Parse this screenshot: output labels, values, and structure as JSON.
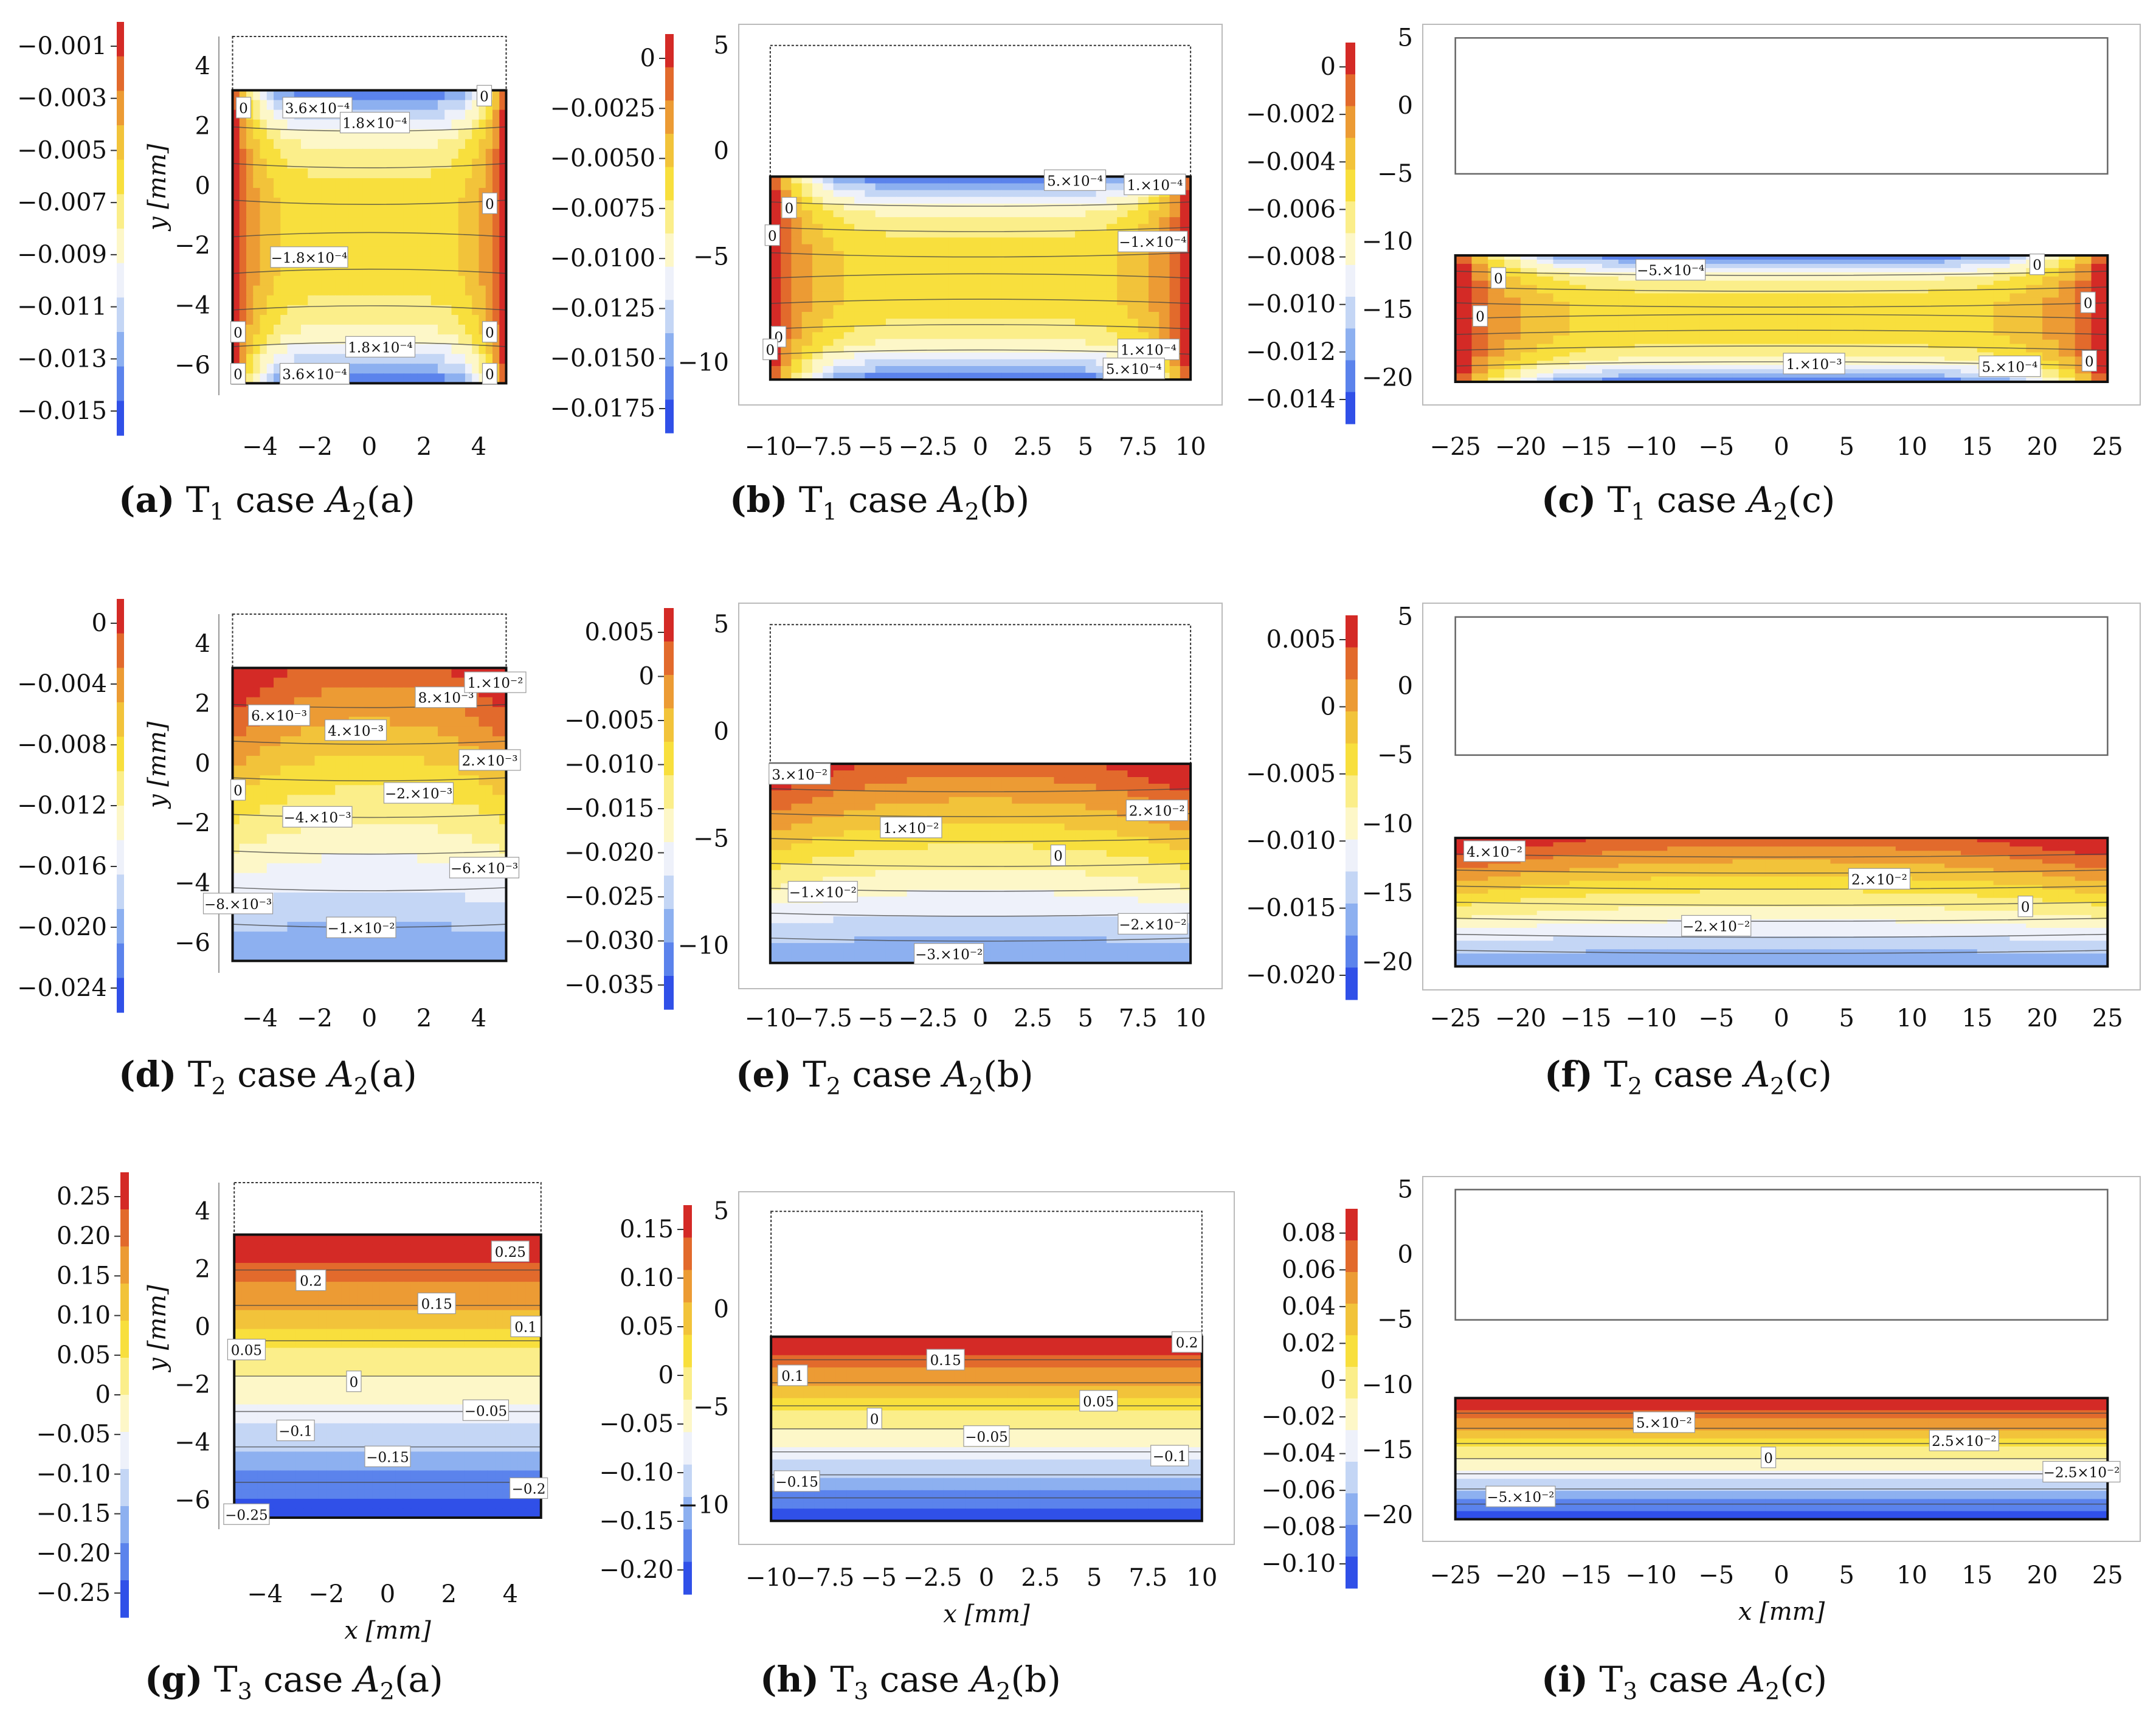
{
  "figure_title": "Strain/stress component maps T1, T2, T3 for cases A2(a), A2(b), A2(c)",
  "palette": [
    "#3050e8",
    "#5b83ec",
    "#8db0f0",
    "#c4d6f5",
    "#eef1fa",
    "#fdf7c8",
    "#fbee8a",
    "#f8df3d",
    "#f2c33a",
    "#ec9b34",
    "#e26a2c",
    "#d42a26"
  ],
  "chart_data": [
    {
      "type": "heatmap",
      "id": "a",
      "caption": {
        "letter": "(a)",
        "t": "T",
        "sub": "1",
        "word": " case ",
        "a": "A",
        "asub": "2",
        "tail": "(a)"
      },
      "xlim": [
        -5.5,
        5.5
      ],
      "ylim": [
        -7,
        5
      ],
      "xticks": [
        "−4",
        "−2",
        "0",
        "2",
        "4"
      ],
      "xtick_values": [
        -4,
        -2,
        0,
        2,
        4
      ],
      "yticks": [
        "4",
        "2",
        "0",
        "−2",
        "−4",
        "−6"
      ],
      "ytick_values": [
        4,
        2,
        0,
        -2,
        -4,
        -6
      ],
      "xlabel": "",
      "ylabel": "y [mm]",
      "colorbar": {
        "ticks": [
          "−0.001",
          "−0.003",
          "−0.005",
          "−0.007",
          "−0.009",
          "−0.011",
          "−0.013",
          "−0.015"
        ]
      },
      "undeformed_box": [
        -5,
        5,
        -6.6,
        5
      ],
      "deformed": {
        "x0": -5,
        "x1": 5,
        "top": 3.2,
        "bottom": -6.6
      },
      "field_pattern": "sides",
      "contour_labels": [
        {
          "text": "3.6×10⁻⁴",
          "x": -1.9,
          "y": 2.6
        },
        {
          "text": "1.8×10⁻⁴",
          "x": 0.2,
          "y": 2.1
        },
        {
          "text": "−1.8×10⁻⁴",
          "x": -2.2,
          "y": -2.4
        },
        {
          "text": "1.8×10⁻⁴",
          "x": 0.4,
          "y": -5.4
        },
        {
          "text": "3.6×10⁻⁴",
          "x": -2.0,
          "y": -6.3
        },
        {
          "text": "0",
          "x": -4.6,
          "y": 2.6
        },
        {
          "text": "0",
          "x": 4.2,
          "y": 3.0
        },
        {
          "text": "0",
          "x": 4.4,
          "y": -0.6
        },
        {
          "text": "0",
          "x": -4.8,
          "y": -4.9
        },
        {
          "text": "0",
          "x": 4.4,
          "y": -4.9
        },
        {
          "text": "0",
          "x": -4.8,
          "y": -6.3
        },
        {
          "text": "0",
          "x": 4.4,
          "y": -6.3
        }
      ]
    },
    {
      "type": "heatmap",
      "id": "b",
      "caption": {
        "letter": "(b)",
        "t": "T",
        "sub": "1",
        "word": " case ",
        "a": "A",
        "asub": "2",
        "tail": "(b)"
      },
      "xlim": [
        -11.5,
        11.5
      ],
      "ylim": [
        -12,
        6
      ],
      "xticks": [
        "−10",
        "−7.5",
        "−5",
        "−2.5",
        "0",
        "2.5",
        "5",
        "7.5",
        "10"
      ],
      "xtick_values": [
        -10,
        -7.5,
        -5,
        -2.5,
        0,
        2.5,
        5,
        7.5,
        10
      ],
      "yticks": [
        "5",
        "0",
        "−5",
        "−10"
      ],
      "ytick_values": [
        5,
        0,
        -5,
        -10
      ],
      "xlabel": "",
      "ylabel": "",
      "colorbar": {
        "ticks": [
          "0",
          "−0.0025",
          "−0.0050",
          "−0.0075",
          "−0.0100",
          "−0.0125",
          "−0.0150",
          "−0.0175"
        ]
      },
      "undeformed_box": [
        -10,
        10,
        -5,
        5
      ],
      "deformed": {
        "x0": -10,
        "x1": 10,
        "top": -1.2,
        "bottom": -10.8
      },
      "field_pattern": "sides",
      "contour_labels": [
        {
          "text": "5.×10⁻⁴",
          "x": 4.5,
          "y": -1.4
        },
        {
          "text": "1.×10⁻⁴",
          "x": 8.3,
          "y": -1.6
        },
        {
          "text": "−1.×10⁻⁴",
          "x": 8.2,
          "y": -4.3
        },
        {
          "text": "1.×10⁻⁴",
          "x": 8.0,
          "y": -9.4
        },
        {
          "text": "5.×10⁻⁴",
          "x": 7.3,
          "y": -10.3
        },
        {
          "text": "0",
          "x": -9.1,
          "y": -2.7
        },
        {
          "text": "0",
          "x": -9.9,
          "y": -4.0
        },
        {
          "text": "0",
          "x": -9.6,
          "y": -8.8
        },
        {
          "text": "0",
          "x": -10.0,
          "y": -9.4
        }
      ]
    },
    {
      "type": "heatmap",
      "id": "c",
      "caption": {
        "letter": "(c)",
        "t": "T",
        "sub": "1",
        "word": " case ",
        "a": "A",
        "asub": "2",
        "tail": "(c)"
      },
      "xlim": [
        -27.5,
        27.5
      ],
      "ylim": [
        -22,
        6
      ],
      "xticks": [
        "−25",
        "−20",
        "−15",
        "−10",
        "−5",
        "0",
        "5",
        "10",
        "15",
        "20",
        "25"
      ],
      "xtick_values": [
        -25,
        -20,
        -15,
        -10,
        -5,
        0,
        5,
        10,
        15,
        20,
        25
      ],
      "yticks": [
        "5",
        "0",
        "−5",
        "−10",
        "−15",
        "−20"
      ],
      "ytick_values": [
        5,
        0,
        -5,
        -10,
        -15,
        -20
      ],
      "xlabel": "",
      "ylabel": "",
      "colorbar": {
        "ticks": [
          "0",
          "−0.002",
          "−0.004",
          "−0.006",
          "−0.008",
          "−0.010",
          "−0.012",
          "−0.014"
        ]
      },
      "undeformed_box": [
        -25,
        25,
        -5,
        5
      ],
      "deformed": {
        "x0": -25,
        "x1": 25,
        "top": -11,
        "bottom": -20.3
      },
      "field_pattern": "sides",
      "contour_labels": [
        {
          "text": "−5.×10⁻⁴",
          "x": -8.5,
          "y": -12.1
        },
        {
          "text": "1.×10⁻³",
          "x": 2.5,
          "y": -19.0
        },
        {
          "text": "5.×10⁻⁴",
          "x": 17.5,
          "y": -19.2
        },
        {
          "text": "0",
          "x": 19.6,
          "y": -11.7
        },
        {
          "text": "0",
          "x": -21.7,
          "y": -12.7
        },
        {
          "text": "0",
          "x": -23.1,
          "y": -15.5
        },
        {
          "text": "0",
          "x": 23.5,
          "y": -14.5
        },
        {
          "text": "0",
          "x": 23.6,
          "y": -18.8
        }
      ]
    },
    {
      "type": "heatmap",
      "id": "d",
      "caption": {
        "letter": "(d)",
        "t": "T",
        "sub": "2",
        "word": " case ",
        "a": "A",
        "asub": "2",
        "tail": "(a)"
      },
      "xlim": [
        -5.5,
        5.5
      ],
      "ylim": [
        -7,
        5
      ],
      "xticks": [
        "−4",
        "−2",
        "0",
        "2",
        "4"
      ],
      "xtick_values": [
        -4,
        -2,
        0,
        2,
        4
      ],
      "yticks": [
        "4",
        "2",
        "0",
        "−2",
        "−4",
        "−6"
      ],
      "ytick_values": [
        4,
        2,
        0,
        -2,
        -4,
        -6
      ],
      "xlabel": "",
      "ylabel": "y [mm]",
      "colorbar": {
        "ticks": [
          "0",
          "−0.004",
          "−0.008",
          "−0.012",
          "−0.016",
          "−0.020",
          "−0.024"
        ]
      },
      "undeformed_box": [
        -5,
        5,
        -6.6,
        5
      ],
      "deformed": {
        "x0": -5,
        "x1": 5,
        "top": 3.2,
        "bottom": -6.6
      },
      "field_pattern": "bend",
      "contour_labels": [
        {
          "text": "6.×10⁻³",
          "x": -3.3,
          "y": 1.6
        },
        {
          "text": "4.×10⁻³",
          "x": -0.5,
          "y": 1.1
        },
        {
          "text": "8.×10⁻³",
          "x": 2.8,
          "y": 2.2
        },
        {
          "text": "1.×10⁻²",
          "x": 4.6,
          "y": 2.7
        },
        {
          "text": "2.×10⁻³",
          "x": 4.4,
          "y": 0.1
        },
        {
          "text": "0",
          "x": -4.8,
          "y": -0.9
        },
        {
          "text": "−2.×10⁻³",
          "x": 1.8,
          "y": -1.0
        },
        {
          "text": "−4.×10⁻³",
          "x": -1.9,
          "y": -1.8
        },
        {
          "text": "−6.×10⁻³",
          "x": 4.2,
          "y": -3.5
        },
        {
          "text": "−8.×10⁻³",
          "x": -4.8,
          "y": -4.7
        },
        {
          "text": "−1.×10⁻²",
          "x": -0.3,
          "y": -5.5
        }
      ]
    },
    {
      "type": "heatmap",
      "id": "e",
      "caption": {
        "letter": "(e)",
        "t": "T",
        "sub": "2",
        "word": " case ",
        "a": "A",
        "asub": "2",
        "tail": "(b)"
      },
      "xlim": [
        -11.5,
        11.5
      ],
      "ylim": [
        -12,
        6
      ],
      "xticks": [
        "−10",
        "−7.5",
        "−5",
        "−2.5",
        "0",
        "2.5",
        "5",
        "7.5",
        "10"
      ],
      "xtick_values": [
        -10,
        -7.5,
        -5,
        -2.5,
        0,
        2.5,
        5,
        7.5,
        10
      ],
      "yticks": [
        "5",
        "0",
        "−5",
        "−10"
      ],
      "ytick_values": [
        5,
        0,
        -5,
        -10
      ],
      "xlabel": "",
      "ylabel": "",
      "colorbar": {
        "ticks": [
          "0.005",
          "0",
          "−0.005",
          "−0.010",
          "−0.015",
          "−0.020",
          "−0.025",
          "−0.030",
          "−0.035"
        ]
      },
      "undeformed_box": [
        -10,
        10,
        -5,
        5
      ],
      "deformed": {
        "x0": -10,
        "x1": 10,
        "top": -1.5,
        "bottom": -10.8
      },
      "field_pattern": "bend",
      "contour_labels": [
        {
          "text": "3.×10⁻²",
          "x": -8.6,
          "y": -2.0
        },
        {
          "text": "2.×10⁻²",
          "x": 8.4,
          "y": -3.7
        },
        {
          "text": "1.×10⁻²",
          "x": -3.3,
          "y": -4.5
        },
        {
          "text": "0",
          "x": 3.7,
          "y": -5.8
        },
        {
          "text": "−1.×10⁻²",
          "x": -7.5,
          "y": -7.5
        },
        {
          "text": "−2.×10⁻²",
          "x": 8.2,
          "y": -9.0
        },
        {
          "text": "−3.×10⁻²",
          "x": -1.5,
          "y": -10.4
        }
      ]
    },
    {
      "type": "heatmap",
      "id": "f",
      "caption": {
        "letter": "(f)",
        "t": "T",
        "sub": "2",
        "word": " case ",
        "a": "A",
        "asub": "2",
        "tail": "(c)"
      },
      "xlim": [
        -27.5,
        27.5
      ],
      "ylim": [
        -22,
        6
      ],
      "xticks": [
        "−25",
        "−20",
        "−15",
        "−10",
        "−5",
        "0",
        "5",
        "10",
        "15",
        "20",
        "25"
      ],
      "xtick_values": [
        -25,
        -20,
        -15,
        -10,
        -5,
        0,
        5,
        10,
        15,
        20,
        25
      ],
      "yticks": [
        "5",
        "0",
        "−5",
        "−10",
        "−15",
        "−20"
      ],
      "ytick_values": [
        5,
        0,
        -5,
        -10,
        -15,
        -20
      ],
      "xlabel": "",
      "ylabel": "",
      "colorbar": {
        "ticks": [
          "0.005",
          "0",
          "−0.005",
          "−0.010",
          "−0.015",
          "−0.020"
        ]
      },
      "undeformed_box": [
        -25,
        25,
        -5,
        5
      ],
      "deformed": {
        "x0": -25,
        "x1": 25,
        "top": -11,
        "bottom": -20.3
      },
      "field_pattern": "bend",
      "contour_labels": [
        {
          "text": "4.×10⁻²",
          "x": -22.0,
          "y": -12.0
        },
        {
          "text": "2.×10⁻²",
          "x": 7.5,
          "y": -14.0
        },
        {
          "text": "0",
          "x": 18.7,
          "y": -16.0
        },
        {
          "text": "−2.×10⁻²",
          "x": -5.0,
          "y": -17.4
        }
      ]
    },
    {
      "type": "heatmap",
      "id": "g",
      "caption": {
        "letter": "(g)",
        "t": "T",
        "sub": "3",
        "word": " case ",
        "a": "A",
        "asub": "2",
        "tail": "(a)"
      },
      "xlim": [
        -5.5,
        5.5
      ],
      "ylim": [
        -7,
        5
      ],
      "xticks": [
        "−4",
        "−2",
        "0",
        "2",
        "4"
      ],
      "xtick_values": [
        -4,
        -2,
        0,
        2,
        4
      ],
      "yticks": [
        "4",
        "2",
        "0",
        "−2",
        "−4",
        "−6"
      ],
      "ytick_values": [
        4,
        2,
        0,
        -2,
        -4,
        -6
      ],
      "xlabel": "x [mm]",
      "ylabel": "y [mm]",
      "colorbar": {
        "ticks": [
          "0.25",
          "0.20",
          "0.15",
          "0.10",
          "0.05",
          "0",
          "−0.05",
          "−0.10",
          "−0.15",
          "−0.20",
          "−0.25"
        ]
      },
      "undeformed_box": [
        -5,
        5,
        -6.6,
        5
      ],
      "deformed": {
        "x0": -5,
        "x1": 5,
        "top": 3.2,
        "bottom": -6.6
      },
      "field_pattern": "linear",
      "contour_labels": [
        {
          "text": "0.25",
          "x": 4.0,
          "y": 2.6
        },
        {
          "text": "0.2",
          "x": -2.5,
          "y": 1.6
        },
        {
          "text": "0.15",
          "x": 1.6,
          "y": 0.8
        },
        {
          "text": "0.1",
          "x": 4.5,
          "y": 0.0
        },
        {
          "text": "0.05",
          "x": -4.6,
          "y": -0.8
        },
        {
          "text": "0",
          "x": -1.1,
          "y": -1.9
        },
        {
          "text": "−0.05",
          "x": 3.2,
          "y": -2.9
        },
        {
          "text": "−0.1",
          "x": -3.0,
          "y": -3.6
        },
        {
          "text": "−0.15",
          "x": 0.0,
          "y": -4.5
        },
        {
          "text": "−0.2",
          "x": 4.6,
          "y": -5.6
        },
        {
          "text": "−0.25",
          "x": -4.6,
          "y": -6.5
        }
      ]
    },
    {
      "type": "heatmap",
      "id": "h",
      "caption": {
        "letter": "(h)",
        "t": "T",
        "sub": "3",
        "word": " case ",
        "a": "A",
        "asub": "2",
        "tail": "(b)"
      },
      "xlim": [
        -11.5,
        11.5
      ],
      "ylim": [
        -12,
        6
      ],
      "xticks": [
        "−10",
        "−7.5",
        "−5",
        "−2.5",
        "0",
        "2.5",
        "5",
        "7.5",
        "10"
      ],
      "xtick_values": [
        -10,
        -7.5,
        -5,
        -2.5,
        0,
        2.5,
        5,
        7.5,
        10
      ],
      "yticks": [
        "5",
        "0",
        "−5",
        "−10"
      ],
      "ytick_values": [
        5,
        0,
        -5,
        -10
      ],
      "xlabel": "x [mm]",
      "ylabel": "",
      "colorbar": {
        "ticks": [
          "0.15",
          "0.10",
          "0.05",
          "0",
          "−0.05",
          "−0.10",
          "−0.15",
          "−0.20"
        ]
      },
      "undeformed_box": [
        -10,
        10,
        -5,
        5
      ],
      "deformed": {
        "x0": -10,
        "x1": 10,
        "top": -1.4,
        "bottom": -10.8
      },
      "field_pattern": "linear",
      "contour_labels": [
        {
          "text": "0.2",
          "x": 9.3,
          "y": -1.7
        },
        {
          "text": "0.15",
          "x": -1.9,
          "y": -2.6
        },
        {
          "text": "0.1",
          "x": -9.0,
          "y": -3.4
        },
        {
          "text": "0.05",
          "x": 5.2,
          "y": -4.7
        },
        {
          "text": "0",
          "x": -5.2,
          "y": -5.6
        },
        {
          "text": "−0.05",
          "x": 0.0,
          "y": -6.5
        },
        {
          "text": "−0.1",
          "x": 8.5,
          "y": -7.5
        },
        {
          "text": "−0.15",
          "x": -8.8,
          "y": -8.8
        }
      ]
    },
    {
      "type": "heatmap",
      "id": "i",
      "caption": {
        "letter": "(i)",
        "t": "T",
        "sub": "3",
        "word": " case ",
        "a": "A",
        "asub": "2",
        "tail": "(c)"
      },
      "xlim": [
        -27.5,
        27.5
      ],
      "ylim": [
        -22,
        6
      ],
      "xticks": [
        "−25",
        "−20",
        "−15",
        "−10",
        "−5",
        "0",
        "5",
        "10",
        "15",
        "20",
        "25"
      ],
      "xtick_values": [
        -25,
        -20,
        -15,
        -10,
        -5,
        0,
        5,
        10,
        15,
        20,
        25
      ],
      "yticks": [
        "5",
        "0",
        "−5",
        "−10",
        "−15",
        "−20"
      ],
      "ytick_values": [
        5,
        0,
        -5,
        -10,
        -15,
        -20
      ],
      "xlabel": "x [mm]",
      "ylabel": "",
      "colorbar": {
        "ticks": [
          "0.08",
          "0.06",
          "0.04",
          "0.02",
          "0",
          "−0.02",
          "−0.04",
          "−0.06",
          "−0.08",
          "−0.10"
        ]
      },
      "undeformed_box": [
        -25,
        25,
        -5,
        5
      ],
      "deformed": {
        "x0": -25,
        "x1": 25,
        "top": -11,
        "bottom": -20.3
      },
      "field_pattern": "linear",
      "contour_labels": [
        {
          "text": "5.×10⁻²",
          "x": -9.0,
          "y": -12.9
        },
        {
          "text": "2.5×10⁻²",
          "x": 14.0,
          "y": -14.3
        },
        {
          "text": "0",
          "x": -1.0,
          "y": -15.6
        },
        {
          "text": "−2.5×10⁻²",
          "x": 23.0,
          "y": -16.7
        },
        {
          "text": "−5.×10⁻²",
          "x": -20.0,
          "y": -18.6
        }
      ]
    }
  ]
}
